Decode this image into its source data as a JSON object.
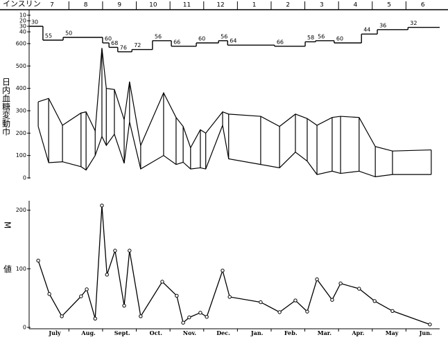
{
  "header_label": "インスリン",
  "chart_data": [
    {
      "type": "step",
      "categories": [
        "7",
        "8",
        "9",
        "10",
        "11",
        "12",
        "1",
        "2",
        "3",
        "4",
        "5",
        "6"
      ],
      "x": [
        -0.18,
        0.23,
        0.83,
        2.0,
        2.19,
        2.45,
        2.87,
        3.48,
        4.04,
        4.78,
        5.44,
        5.71,
        7.1,
        8.01,
        8.32,
        8.87,
        9.68,
        10.15,
        11.06
      ],
      "values": [
        30,
        55,
        50,
        60,
        68,
        76,
        72,
        56,
        66,
        60,
        56,
        64,
        66,
        58,
        56,
        60,
        44,
        36,
        32
      ],
      "xlim": [
        -0.2,
        12
      ],
      "ylim": [
        0,
        80
      ],
      "yticks": [
        10,
        20,
        30,
        40
      ]
    },
    {
      "type": "range",
      "ylabel": "日内血糖変動巾",
      "x": [
        0.09,
        0.4,
        0.81,
        1.36,
        1.51,
        1.78,
        1.98,
        2.11,
        2.35,
        2.64,
        2.8,
        3.13,
        3.81,
        4.18,
        4.39,
        4.61,
        4.9,
        5.06,
        5.56,
        5.74,
        6.69,
        7.25,
        7.72,
        8.07,
        8.36,
        8.81,
        9.06,
        9.61,
        10.09,
        10.6,
        11.75
      ],
      "high": [
        340,
        355,
        235,
        290,
        295,
        210,
        580,
        400,
        395,
        260,
        430,
        145,
        380,
        270,
        230,
        135,
        215,
        200,
        295,
        285,
        275,
        230,
        285,
        265,
        235,
        270,
        275,
        270,
        140,
        120,
        125
      ],
      "low": [
        230,
        68,
        72,
        50,
        35,
        100,
        185,
        145,
        195,
        65,
        250,
        40,
        100,
        60,
        70,
        40,
        45,
        40,
        235,
        85,
        60,
        45,
        115,
        75,
        15,
        30,
        20,
        30,
        5,
        15,
        15
      ],
      "xlim": [
        -0.2,
        12
      ],
      "ylim": [
        0,
        600
      ],
      "yticks": [
        0,
        100,
        200,
        300,
        400,
        500,
        600
      ]
    },
    {
      "type": "line",
      "ylabel": "M値",
      "categories": [
        "July",
        "Aug.",
        "Sept.",
        "Oct.",
        "Nov.",
        "Dec.",
        "Jan.",
        "Feb.",
        "Mar.",
        "Apr.",
        "May",
        "Jun."
      ],
      "x": [
        0.09,
        0.42,
        0.79,
        1.36,
        1.53,
        1.78,
        1.98,
        2.13,
        2.37,
        2.64,
        2.8,
        3.13,
        3.77,
        4.2,
        4.39,
        4.57,
        4.9,
        5.09,
        5.56,
        5.77,
        6.69,
        7.25,
        7.72,
        8.07,
        8.36,
        8.81,
        9.06,
        9.61,
        10.07,
        10.6,
        11.71
      ],
      "values": [
        114,
        57,
        19,
        53,
        65,
        15,
        208,
        90,
        131,
        37,
        131,
        19,
        78,
        54,
        8,
        17,
        25,
        18,
        97,
        52,
        43,
        26,
        46,
        27,
        82,
        47,
        75,
        66,
        45,
        28,
        5
      ],
      "xlim": [
        -0.2,
        12
      ],
      "ylim": [
        0,
        215
      ],
      "yticks": [
        0,
        100,
        200
      ]
    }
  ]
}
